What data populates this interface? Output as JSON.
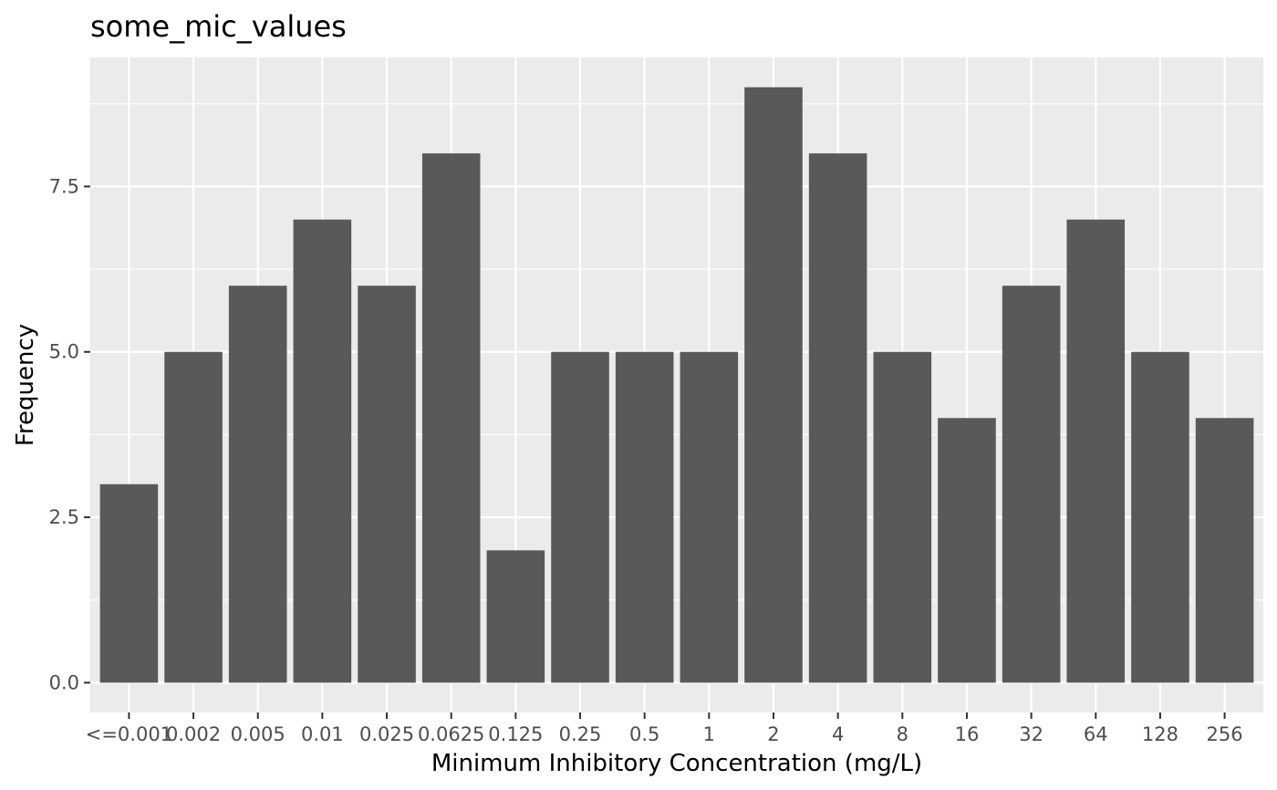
{
  "chart_data": {
    "type": "bar",
    "title": "some_mic_values",
    "xlabel": "Minimum Inhibitory Concentration (mg/L)",
    "ylabel": "Frequency",
    "categories": [
      "<=0.001",
      "0.002",
      "0.005",
      "0.01",
      "0.025",
      "0.0625",
      "0.125",
      "0.25",
      "0.5",
      "1",
      "2",
      "4",
      "8",
      "16",
      "32",
      "64",
      "128",
      "256"
    ],
    "values": [
      3,
      5,
      6,
      7,
      6,
      8,
      2,
      5,
      5,
      5,
      9,
      8,
      5,
      4,
      6,
      7,
      5,
      4
    ],
    "ylim": [
      -0.45,
      9.45
    ],
    "y_ticks": [
      0.0,
      2.5,
      5.0,
      7.5
    ],
    "y_tick_labels": [
      "0.0",
      "2.5",
      "5.0",
      "7.5"
    ],
    "grid": true,
    "legend": "none",
    "colors": {
      "bar_fill": "#595959",
      "panel_background": "#ebebeb",
      "grid_line": "#ffffff",
      "tick_mark": "#333333",
      "tick_text": "#4d4d4d",
      "text": "#000000"
    }
  }
}
